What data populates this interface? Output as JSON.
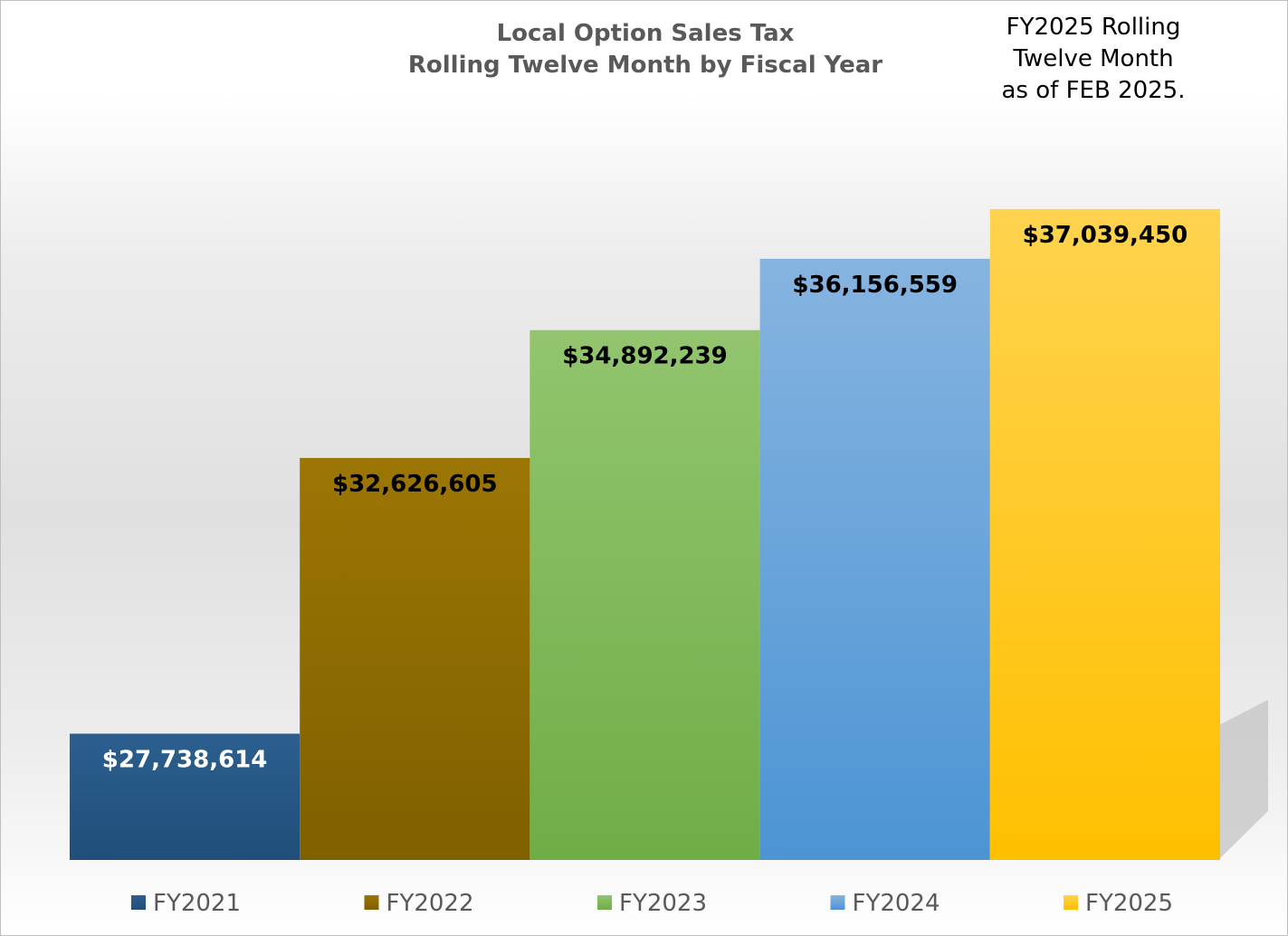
{
  "chart_data": {
    "type": "bar",
    "title": "Local Option Sales Tax",
    "subtitle": "Rolling Twelve Month by Fiscal Year",
    "annotation": [
      "FY2025 Rolling",
      "Twelve Month",
      "as of FEB 2025."
    ],
    "categories": [
      "FY2021",
      "FY2022",
      "FY2023",
      "FY2024",
      "FY2025"
    ],
    "values": [
      27738614,
      32626605,
      34892239,
      36156559,
      37039450
    ],
    "data_labels": [
      "$27,738,614",
      "$32,626,605",
      "$34,892,239",
      "$36,156,559",
      "$37,039,450"
    ],
    "ylim": [
      25500000,
      38000000
    ],
    "xlabel": "",
    "ylabel": "",
    "grid": false,
    "legend_position": "bottom",
    "colors": [
      [
        "#2c5f8f",
        "#1f4e79"
      ],
      [
        "#9c7604",
        "#7f6000"
      ],
      [
        "#92c56e",
        "#70ad47"
      ],
      [
        "#86b4e0",
        "#4c94d4"
      ],
      [
        "#ffd34f",
        "#ffc000"
      ]
    ],
    "label_colors": [
      "#ffffff",
      "#000000",
      "#000000",
      "#000000",
      "#000000"
    ]
  }
}
